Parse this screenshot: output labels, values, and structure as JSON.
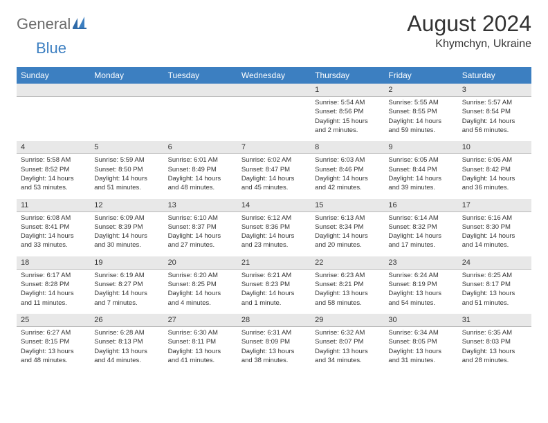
{
  "logo": {
    "general": "General",
    "blue": "Blue"
  },
  "title": "August 2024",
  "location": "Khymchyn, Ukraine",
  "headerBg": "#3c7fc1",
  "dayNames": [
    "Sunday",
    "Monday",
    "Tuesday",
    "Wednesday",
    "Thursday",
    "Friday",
    "Saturday"
  ],
  "weeks": [
    {
      "nums": [
        "",
        "",
        "",
        "",
        "1",
        "2",
        "3"
      ],
      "cells": [
        null,
        null,
        null,
        null,
        {
          "sr": "Sunrise: 5:54 AM",
          "ss": "Sunset: 8:56 PM",
          "d1": "Daylight: 15 hours",
          "d2": "and 2 minutes."
        },
        {
          "sr": "Sunrise: 5:55 AM",
          "ss": "Sunset: 8:55 PM",
          "d1": "Daylight: 14 hours",
          "d2": "and 59 minutes."
        },
        {
          "sr": "Sunrise: 5:57 AM",
          "ss": "Sunset: 8:54 PM",
          "d1": "Daylight: 14 hours",
          "d2": "and 56 minutes."
        }
      ]
    },
    {
      "nums": [
        "4",
        "5",
        "6",
        "7",
        "8",
        "9",
        "10"
      ],
      "cells": [
        {
          "sr": "Sunrise: 5:58 AM",
          "ss": "Sunset: 8:52 PM",
          "d1": "Daylight: 14 hours",
          "d2": "and 53 minutes."
        },
        {
          "sr": "Sunrise: 5:59 AM",
          "ss": "Sunset: 8:50 PM",
          "d1": "Daylight: 14 hours",
          "d2": "and 51 minutes."
        },
        {
          "sr": "Sunrise: 6:01 AM",
          "ss": "Sunset: 8:49 PM",
          "d1": "Daylight: 14 hours",
          "d2": "and 48 minutes."
        },
        {
          "sr": "Sunrise: 6:02 AM",
          "ss": "Sunset: 8:47 PM",
          "d1": "Daylight: 14 hours",
          "d2": "and 45 minutes."
        },
        {
          "sr": "Sunrise: 6:03 AM",
          "ss": "Sunset: 8:46 PM",
          "d1": "Daylight: 14 hours",
          "d2": "and 42 minutes."
        },
        {
          "sr": "Sunrise: 6:05 AM",
          "ss": "Sunset: 8:44 PM",
          "d1": "Daylight: 14 hours",
          "d2": "and 39 minutes."
        },
        {
          "sr": "Sunrise: 6:06 AM",
          "ss": "Sunset: 8:42 PM",
          "d1": "Daylight: 14 hours",
          "d2": "and 36 minutes."
        }
      ]
    },
    {
      "nums": [
        "11",
        "12",
        "13",
        "14",
        "15",
        "16",
        "17"
      ],
      "cells": [
        {
          "sr": "Sunrise: 6:08 AM",
          "ss": "Sunset: 8:41 PM",
          "d1": "Daylight: 14 hours",
          "d2": "and 33 minutes."
        },
        {
          "sr": "Sunrise: 6:09 AM",
          "ss": "Sunset: 8:39 PM",
          "d1": "Daylight: 14 hours",
          "d2": "and 30 minutes."
        },
        {
          "sr": "Sunrise: 6:10 AM",
          "ss": "Sunset: 8:37 PM",
          "d1": "Daylight: 14 hours",
          "d2": "and 27 minutes."
        },
        {
          "sr": "Sunrise: 6:12 AM",
          "ss": "Sunset: 8:36 PM",
          "d1": "Daylight: 14 hours",
          "d2": "and 23 minutes."
        },
        {
          "sr": "Sunrise: 6:13 AM",
          "ss": "Sunset: 8:34 PM",
          "d1": "Daylight: 14 hours",
          "d2": "and 20 minutes."
        },
        {
          "sr": "Sunrise: 6:14 AM",
          "ss": "Sunset: 8:32 PM",
          "d1": "Daylight: 14 hours",
          "d2": "and 17 minutes."
        },
        {
          "sr": "Sunrise: 6:16 AM",
          "ss": "Sunset: 8:30 PM",
          "d1": "Daylight: 14 hours",
          "d2": "and 14 minutes."
        }
      ]
    },
    {
      "nums": [
        "18",
        "19",
        "20",
        "21",
        "22",
        "23",
        "24"
      ],
      "cells": [
        {
          "sr": "Sunrise: 6:17 AM",
          "ss": "Sunset: 8:28 PM",
          "d1": "Daylight: 14 hours",
          "d2": "and 11 minutes."
        },
        {
          "sr": "Sunrise: 6:19 AM",
          "ss": "Sunset: 8:27 PM",
          "d1": "Daylight: 14 hours",
          "d2": "and 7 minutes."
        },
        {
          "sr": "Sunrise: 6:20 AM",
          "ss": "Sunset: 8:25 PM",
          "d1": "Daylight: 14 hours",
          "d2": "and 4 minutes."
        },
        {
          "sr": "Sunrise: 6:21 AM",
          "ss": "Sunset: 8:23 PM",
          "d1": "Daylight: 14 hours",
          "d2": "and 1 minute."
        },
        {
          "sr": "Sunrise: 6:23 AM",
          "ss": "Sunset: 8:21 PM",
          "d1": "Daylight: 13 hours",
          "d2": "and 58 minutes."
        },
        {
          "sr": "Sunrise: 6:24 AM",
          "ss": "Sunset: 8:19 PM",
          "d1": "Daylight: 13 hours",
          "d2": "and 54 minutes."
        },
        {
          "sr": "Sunrise: 6:25 AM",
          "ss": "Sunset: 8:17 PM",
          "d1": "Daylight: 13 hours",
          "d2": "and 51 minutes."
        }
      ]
    },
    {
      "nums": [
        "25",
        "26",
        "27",
        "28",
        "29",
        "30",
        "31"
      ],
      "cells": [
        {
          "sr": "Sunrise: 6:27 AM",
          "ss": "Sunset: 8:15 PM",
          "d1": "Daylight: 13 hours",
          "d2": "and 48 minutes."
        },
        {
          "sr": "Sunrise: 6:28 AM",
          "ss": "Sunset: 8:13 PM",
          "d1": "Daylight: 13 hours",
          "d2": "and 44 minutes."
        },
        {
          "sr": "Sunrise: 6:30 AM",
          "ss": "Sunset: 8:11 PM",
          "d1": "Daylight: 13 hours",
          "d2": "and 41 minutes."
        },
        {
          "sr": "Sunrise: 6:31 AM",
          "ss": "Sunset: 8:09 PM",
          "d1": "Daylight: 13 hours",
          "d2": "and 38 minutes."
        },
        {
          "sr": "Sunrise: 6:32 AM",
          "ss": "Sunset: 8:07 PM",
          "d1": "Daylight: 13 hours",
          "d2": "and 34 minutes."
        },
        {
          "sr": "Sunrise: 6:34 AM",
          "ss": "Sunset: 8:05 PM",
          "d1": "Daylight: 13 hours",
          "d2": "and 31 minutes."
        },
        {
          "sr": "Sunrise: 6:35 AM",
          "ss": "Sunset: 8:03 PM",
          "d1": "Daylight: 13 hours",
          "d2": "and 28 minutes."
        }
      ]
    }
  ]
}
